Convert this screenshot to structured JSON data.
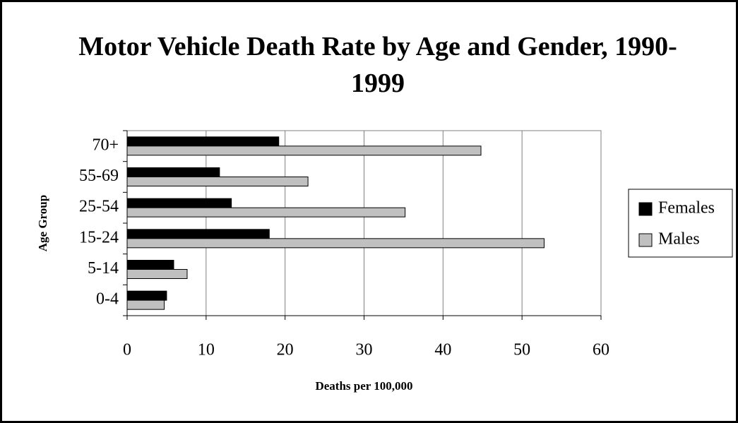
{
  "chart_data": {
    "type": "bar",
    "orientation": "horizontal",
    "title": "Motor Vehicle Death Rate by Age and Gender, 1990-1999",
    "x_label": "Deaths per 100,000",
    "y_label": "Age Group",
    "categories": [
      "0-4",
      "5-14",
      "15-24",
      "25-54",
      "55-69",
      "70+"
    ],
    "series": [
      {
        "name": "Females",
        "color": "#000000",
        "values": [
          5.0,
          5.9,
          18.0,
          13.2,
          11.7,
          19.2
        ]
      },
      {
        "name": "Males",
        "color": "#c0c0c0",
        "values": [
          4.7,
          7.6,
          52.8,
          35.2,
          22.9,
          44.8
        ]
      }
    ],
    "xlim": [
      0,
      60
    ],
    "xticks": [
      0,
      10,
      20,
      30,
      40,
      50,
      60
    ],
    "grid": true,
    "legend": "right"
  }
}
